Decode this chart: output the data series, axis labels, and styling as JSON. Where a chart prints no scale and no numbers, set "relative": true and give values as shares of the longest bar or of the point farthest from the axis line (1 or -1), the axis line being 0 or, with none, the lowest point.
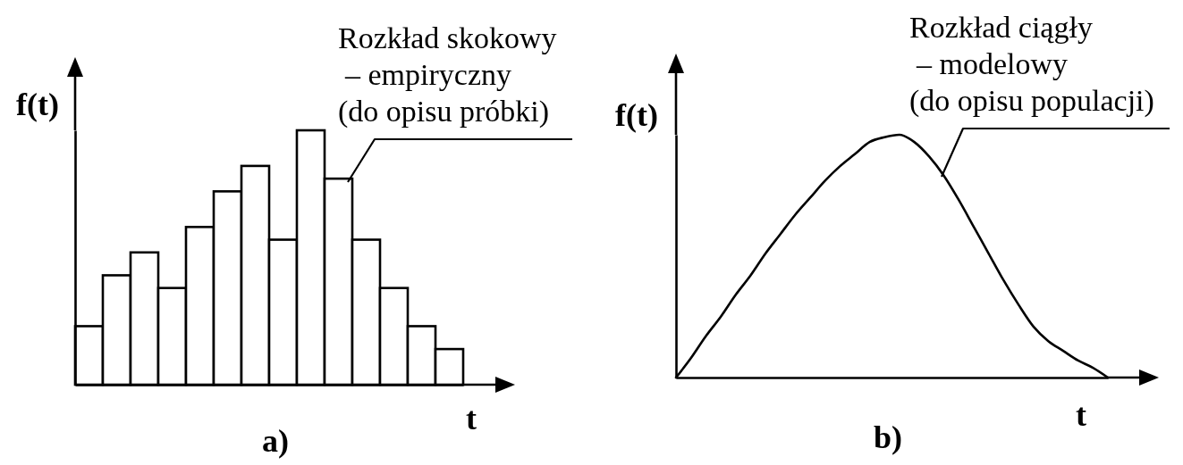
{
  "chart_data": [
    {
      "type": "bar",
      "title": "a)",
      "xlabel": "t",
      "ylabel": "f(t)",
      "relative": true,
      "color": "#ffffff",
      "categories": [
        null,
        null,
        null,
        null,
        null,
        null,
        null,
        null,
        null,
        null,
        null,
        null,
        null,
        null
      ],
      "values": [
        0.23,
        0.43,
        0.52,
        0.38,
        0.62,
        0.76,
        0.86,
        0.57,
        1,
        0.81,
        0.57,
        0.38,
        0.23,
        0.14
      ],
      "annotations": [
        "Rozkład skokowy\n– empiryczny\n(do opisu próbki)"
      ]
    },
    {
      "type": "line",
      "title": "b)",
      "xlabel": "t",
      "ylabel": "f(t)",
      "relative": true,
      "color": "#000000",
      "categories": [
        null,
        null,
        null,
        null,
        null,
        null,
        null,
        null,
        null,
        null,
        null,
        null,
        null,
        null,
        null,
        null,
        null,
        null,
        null,
        null,
        null,
        null,
        null,
        null,
        null,
        null,
        null,
        null,
        null,
        null
      ],
      "values": [
        0,
        0.08,
        0.17,
        0.25,
        0.34,
        0.42,
        0.51,
        0.59,
        0.67,
        0.74,
        0.81,
        0.87,
        0.92,
        0.97,
        0.99,
        1,
        0.97,
        0.91,
        0.83,
        0.73,
        0.62,
        0.51,
        0.4,
        0.3,
        0.21,
        0.15,
        0.11,
        0.07,
        0.04,
        0
      ],
      "annotations": [
        "Rozkład ciągły\n– modelowy\n(do opisu populacji)"
      ]
    }
  ]
}
